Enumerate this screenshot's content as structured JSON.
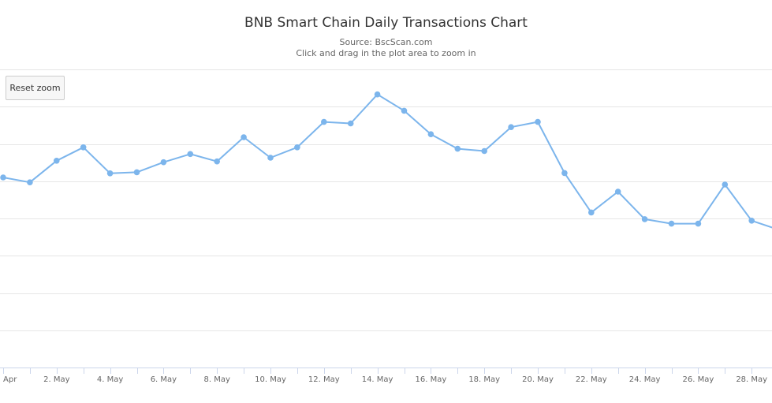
{
  "page": {
    "title": "BNB Smart Chain Daily Transactions Chart",
    "subtitle_source": "Source: BscScan.com",
    "subtitle_hint": "Click and drag in the plot area to zoom in",
    "reset_zoom_label": "Reset zoom"
  },
  "colors": {
    "series": "#7cb5ec",
    "grid": "#e6e6e6",
    "axis": "#ccd6eb"
  },
  "chart_data": {
    "type": "line",
    "title": "BNB Smart Chain Daily Transactions Chart",
    "subtitle": "Source: BscScan.com",
    "x_start_label": "Apr",
    "x_tick_labels": [
      "2. May",
      "4. May",
      "6. May",
      "8. May",
      "10. May",
      "12. May",
      "14. May",
      "16. May",
      "18. May",
      "20. May",
      "22. May",
      "24. May",
      "26. May",
      "28. May"
    ],
    "x": [
      "30 Apr",
      "1 May",
      "2 May",
      "3 May",
      "4 May",
      "5 May",
      "6 May",
      "7 May",
      "8 May",
      "9 May",
      "10 May",
      "11 May",
      "12 May",
      "13 May",
      "14 May",
      "15 May",
      "16 May",
      "17 May",
      "18 May",
      "19 May",
      "20 May",
      "21 May",
      "22 May",
      "23 May",
      "24 May",
      "25 May",
      "26 May",
      "27 May",
      "28 May",
      "29 May"
    ],
    "values": [
      5.1,
      4.97,
      5.55,
      5.91,
      5.21,
      5.24,
      5.51,
      5.73,
      5.53,
      6.18,
      5.63,
      5.91,
      6.59,
      6.55,
      7.33,
      6.89,
      6.26,
      5.87,
      5.81,
      6.45,
      6.59,
      5.22,
      4.16,
      4.72,
      3.98,
      3.86,
      3.86,
      4.91,
      3.94,
      3.7
    ],
    "ylim": [
      0,
      8
    ],
    "grid": true,
    "legend": "none"
  }
}
